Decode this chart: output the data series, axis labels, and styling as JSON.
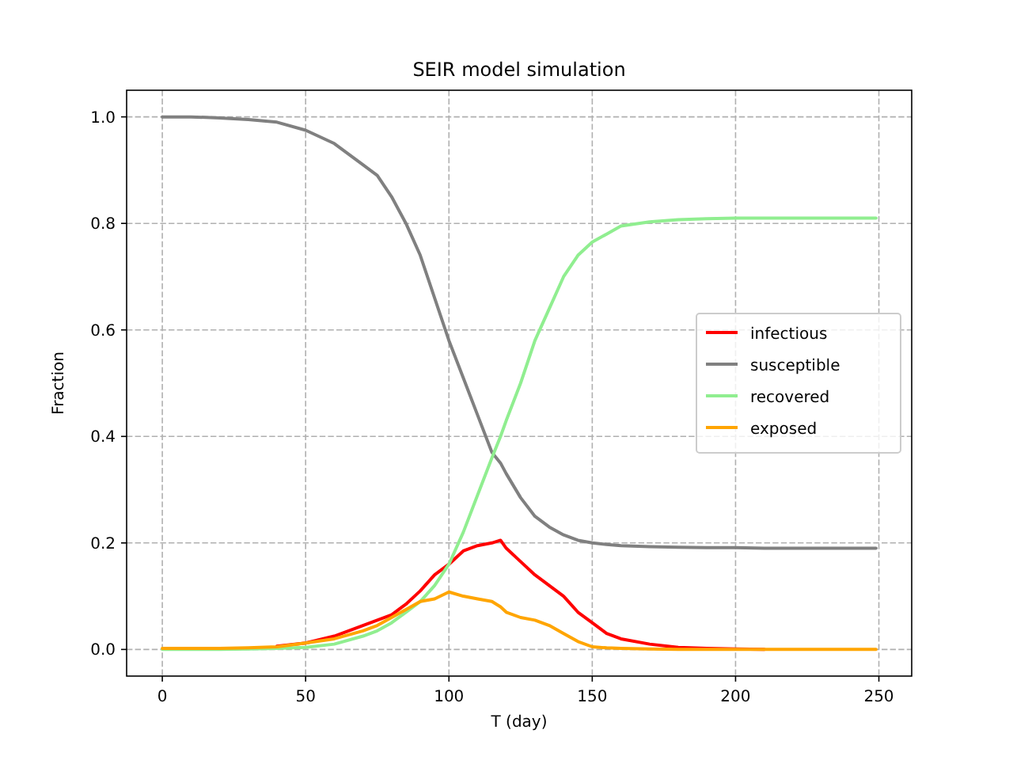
{
  "chart_data": {
    "type": "line",
    "title": "SEIR model simulation",
    "xlabel": "T (day)",
    "ylabel": "Fraction",
    "x": [
      0,
      10,
      20,
      30,
      40,
      50,
      60,
      70,
      75,
      80,
      85,
      90,
      95,
      100,
      105,
      110,
      115,
      118,
      120,
      125,
      130,
      135,
      140,
      145,
      150,
      155,
      160,
      170,
      180,
      190,
      200,
      210,
      220,
      230,
      240,
      249
    ],
    "series": [
      {
        "name": "infectious",
        "color": "#ff0000",
        "values": [
          null,
          null,
          null,
          null,
          0.006,
          0.012,
          0.025,
          0.045,
          0.055,
          0.065,
          0.085,
          0.11,
          0.14,
          0.16,
          0.185,
          0.195,
          0.2,
          0.205,
          0.19,
          0.165,
          0.14,
          0.12,
          0.1,
          0.07,
          0.05,
          0.03,
          0.02,
          0.01,
          0.004,
          0.002,
          0.001,
          0,
          null,
          null,
          null,
          null
        ]
      },
      {
        "name": "susceptible",
        "color": "#808080",
        "values": [
          1.0,
          1.0,
          0.998,
          0.995,
          0.99,
          0.975,
          0.95,
          0.91,
          0.89,
          0.85,
          0.8,
          0.74,
          0.66,
          0.58,
          0.51,
          0.44,
          0.37,
          0.35,
          0.33,
          0.285,
          0.25,
          0.23,
          0.215,
          0.205,
          0.2,
          0.197,
          0.195,
          0.193,
          0.192,
          0.191,
          0.191,
          0.19,
          0.19,
          0.19,
          0.19,
          0.19
        ]
      },
      {
        "name": "recovered",
        "color": "#90ee90",
        "values": [
          0,
          0,
          0,
          0.001,
          0.002,
          0.004,
          0.01,
          0.025,
          0.035,
          0.05,
          0.07,
          0.09,
          0.12,
          0.16,
          0.22,
          0.29,
          0.36,
          0.4,
          0.43,
          0.5,
          0.58,
          0.64,
          0.7,
          0.74,
          0.765,
          0.78,
          0.795,
          0.803,
          0.807,
          0.809,
          0.81,
          0.81,
          0.81,
          0.81,
          0.81,
          0.81
        ]
      },
      {
        "name": "exposed",
        "color": "#ffa500",
        "values": [
          0.002,
          0.002,
          0.002,
          0.003,
          0.005,
          0.012,
          0.02,
          0.035,
          0.045,
          0.06,
          0.075,
          0.09,
          0.095,
          0.108,
          0.1,
          0.095,
          0.09,
          0.08,
          0.07,
          0.06,
          0.055,
          0.045,
          0.03,
          0.015,
          0.005,
          0.003,
          0.002,
          0.001,
          0,
          0,
          0,
          0,
          0,
          0,
          0,
          0
        ]
      }
    ],
    "xlim": [
      -12.45,
      261.45
    ],
    "ylim": [
      -0.05,
      1.05
    ],
    "xticks": [
      0,
      50,
      100,
      150,
      200,
      250
    ],
    "yticks": [
      {
        "value": 0,
        "label": "0.0"
      },
      {
        "value": 0.2,
        "label": "0.2"
      },
      {
        "value": 0.4,
        "label": "0.4"
      },
      {
        "value": 0.6,
        "label": "0.6"
      },
      {
        "value": 0.8,
        "label": "0.8"
      },
      {
        "value": 1.0,
        "label": "1.0"
      }
    ],
    "grid": true,
    "legend": "right"
  }
}
